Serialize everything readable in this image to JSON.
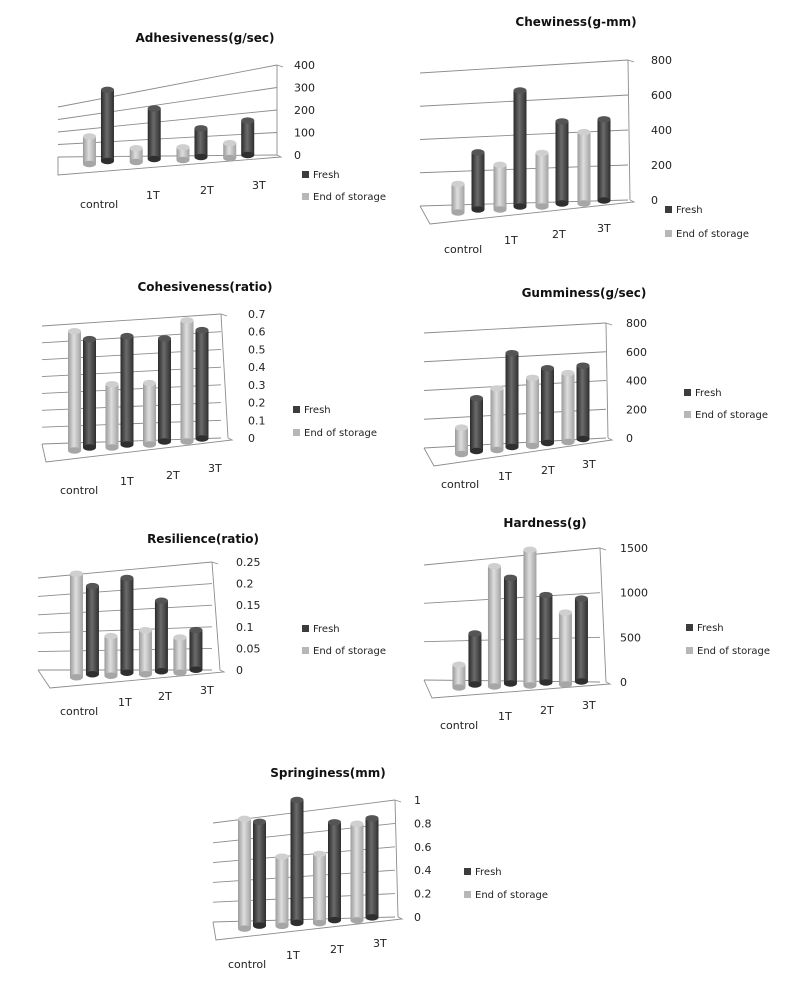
{
  "colors": {
    "fresh": "#3c3c3c",
    "fresh_light": "#6a6a6a",
    "storage": "#b7b7b7",
    "storage_light": "#d8d8d8",
    "grid": "#8c8c8c"
  },
  "chart_data": [
    {
      "type": "bar",
      "title": "Adhesiveness(g/sec)",
      "categories": [
        "control",
        "1T",
        "2T",
        "3T"
      ],
      "series": [
        {
          "name": "Fresh",
          "values": [
            310,
            220,
            125,
            150
          ]
        },
        {
          "name": "End of storage",
          "values": [
            120,
            60,
            55,
            65
          ]
        }
      ],
      "yticks": [
        "0",
        "100",
        "200",
        "300",
        "400"
      ],
      "ylim": [
        0,
        400
      ],
      "legend": [
        "Fresh",
        "End of storage"
      ],
      "legend_position": "right"
    },
    {
      "type": "bar",
      "title": "Chewiness(g-mm)",
      "categories": [
        "control",
        "1T",
        "2T",
        "3T"
      ],
      "series": [
        {
          "name": "Fresh",
          "values": [
            320,
            650,
            460,
            455
          ]
        },
        {
          "name": "End of storage",
          "values": [
            160,
            250,
            300,
            400
          ]
        }
      ],
      "yticks": [
        "0",
        "200",
        "400",
        "600",
        "800"
      ],
      "ylim": [
        0,
        800
      ],
      "legend": [
        "Fresh",
        "End of storage"
      ],
      "legend_position": "right"
    },
    {
      "type": "bar",
      "title": "Cohesiveness(ratio)",
      "categories": [
        "control",
        "1T",
        "2T",
        "3T"
      ],
      "series": [
        {
          "name": "Fresh",
          "values": [
            0.6,
            0.6,
            0.57,
            0.6
          ]
        },
        {
          "name": "End of storage",
          "values": [
            0.66,
            0.35,
            0.34,
            0.67
          ]
        }
      ],
      "yticks": [
        "0",
        "0.1",
        "0.2",
        "0.3",
        "0.4",
        "0.5",
        "0.6",
        "0.7"
      ],
      "ylim": [
        0,
        0.7
      ],
      "legend": [
        "Fresh",
        "End of storage"
      ],
      "legend_position": "right"
    },
    {
      "type": "bar",
      "title": "Gumminess(g/sec)",
      "categories": [
        "control",
        "1T",
        "2T",
        "3T"
      ],
      "series": [
        {
          "name": "Fresh",
          "values": [
            360,
            640,
            510,
            500
          ]
        },
        {
          "name": "End of storage",
          "values": [
            180,
            420,
            465,
            470
          ]
        }
      ],
      "yticks": [
        "0",
        "200",
        "400",
        "600",
        "800"
      ],
      "ylim": [
        0,
        800
      ],
      "legend": [
        "Fresh",
        "End of storage"
      ],
      "legend_position": "right"
    },
    {
      "type": "bar",
      "title": "Resilience(ratio)",
      "categories": [
        "control",
        "1T",
        "2T",
        "3T"
      ],
      "series": [
        {
          "name": "Fresh",
          "values": [
            0.2,
            0.215,
            0.16,
            0.09
          ]
        },
        {
          "name": "End of storage",
          "values": [
            0.235,
            0.09,
            0.1,
            0.08
          ]
        }
      ],
      "yticks": [
        "0",
        "0.05",
        "0.1",
        "0.15",
        "0.2",
        "0.25"
      ],
      "ylim": [
        0,
        0.25
      ],
      "legend": [
        "Fresh",
        "End of storage"
      ],
      "legend_position": "right"
    },
    {
      "type": "bar",
      "title": "Hardness(g)",
      "categories": [
        "control",
        "1T",
        "2T",
        "3T"
      ],
      "series": [
        {
          "name": "Fresh",
          "values": [
            560,
            1160,
            960,
            910
          ]
        },
        {
          "name": "End of storage",
          "values": [
            250,
            1320,
            1490,
            790
          ]
        }
      ],
      "yticks": [
        "0",
        "500",
        "1000",
        "1500"
      ],
      "ylim": [
        0,
        1500
      ],
      "legend": [
        "Fresh",
        "End of storage"
      ],
      "legend_position": "right"
    },
    {
      "type": "bar",
      "title": "Springiness(mm)",
      "categories": [
        "control",
        "1T",
        "2T",
        "3T"
      ],
      "series": [
        {
          "name": "Fresh",
          "values": [
            0.87,
            1.03,
            0.82,
            0.83
          ]
        },
        {
          "name": "End of storage",
          "values": [
            0.92,
            0.58,
            0.58,
            0.81
          ]
        }
      ],
      "yticks": [
        "0",
        "0.2",
        "0.4",
        "0.6",
        "0.8",
        "1"
      ],
      "ylim": [
        0,
        1
      ],
      "legend": [
        "Fresh",
        "End of storage"
      ],
      "legend_position": "right"
    }
  ]
}
